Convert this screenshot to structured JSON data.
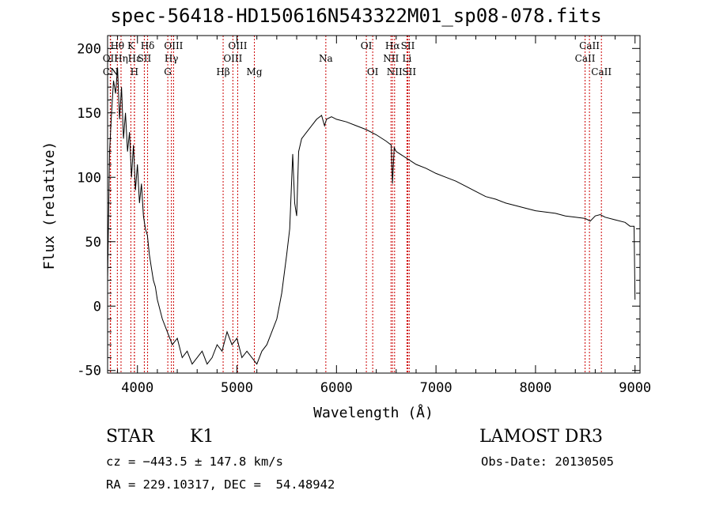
{
  "chart_data": {
    "type": "line",
    "title": "spec-56418-HD150616N543322M01_sp08-078.fits",
    "xlabel": "Wavelength (Å)",
    "ylabel": "Flux (relative)",
    "xlim": [
      3700,
      9050
    ],
    "ylim": [
      -52,
      210
    ],
    "x_ticks": [
      4000,
      5000,
      6000,
      7000,
      8000,
      9000
    ],
    "y_ticks": [
      -50,
      0,
      50,
      100,
      150,
      200
    ],
    "grid": false,
    "series": [
      {
        "x": [
          3700,
          3720,
          3740,
          3760,
          3780,
          3800,
          3820,
          3840,
          3860,
          3880,
          3900,
          3920,
          3940,
          3960,
          3980,
          4000,
          4020,
          4040,
          4060,
          4080,
          4100,
          4120,
          4140,
          4160,
          4180,
          4200,
          4250,
          4300,
          4350,
          4400,
          4450,
          4500,
          4550,
          4600,
          4650,
          4700,
          4750,
          4800,
          4850,
          4900,
          4950,
          5000,
          5050,
          5100,
          5150,
          5200,
          5250,
          5300,
          5350,
          5400,
          5450,
          5500,
          5530,
          5560,
          5580,
          5600,
          5620,
          5650,
          5700,
          5750,
          5800,
          5850,
          5880,
          5900,
          5950,
          6000,
          6100,
          6200,
          6300,
          6400,
          6500,
          6550,
          6563,
          6580,
          6600,
          6700,
          6800,
          6900,
          7000,
          7100,
          7200,
          7300,
          7400,
          7500,
          7600,
          7700,
          7800,
          7900,
          8000,
          8100,
          8200,
          8300,
          8400,
          8500,
          8550,
          8600,
          8650,
          8700,
          8800,
          8900,
          8950,
          8990,
          9000
        ],
        "y": [
          20,
          120,
          150,
          175,
          165,
          185,
          145,
          170,
          130,
          150,
          120,
          135,
          100,
          125,
          90,
          110,
          80,
          95,
          70,
          60,
          55,
          40,
          30,
          20,
          15,
          5,
          -10,
          -20,
          -30,
          -25,
          -40,
          -35,
          -45,
          -40,
          -35,
          -45,
          -40,
          -30,
          -35,
          -20,
          -30,
          -25,
          -40,
          -35,
          -40,
          -45,
          -35,
          -30,
          -20,
          -10,
          10,
          40,
          60,
          118,
          80,
          70,
          120,
          130,
          135,
          140,
          145,
          148,
          140,
          145,
          147,
          145,
          143,
          140,
          137,
          133,
          128,
          125,
          95,
          123,
          120,
          115,
          110,
          107,
          103,
          100,
          97,
          93,
          89,
          85,
          83,
          80,
          78,
          76,
          74,
          73,
          72,
          70,
          69,
          68,
          66,
          70,
          71,
          69,
          67,
          65,
          62,
          62,
          5
        ]
      }
    ],
    "line_markers": [
      {
        "label": "Hθ",
        "x": 3798,
        "row": 1
      },
      {
        "label": "OII",
        "x": 3727,
        "row": 2
      },
      {
        "label": "Hη",
        "x": 3835,
        "row": 2
      },
      {
        "label": "Hε",
        "x": 3970,
        "row": 2
      },
      {
        "label": "K",
        "x": 3934,
        "row": 1
      },
      {
        "label": "SII",
        "x": 4069,
        "row": 2
      },
      {
        "label": "Hδ",
        "x": 4102,
        "row": 1
      },
      {
        "label": "CN",
        "x": 3730,
        "row": 3
      },
      {
        "label": "H",
        "x": 3969,
        "row": 3
      },
      {
        "label": "OIII",
        "x": 4363,
        "row": 1
      },
      {
        "label": "Hγ",
        "x": 4341,
        "row": 2
      },
      {
        "label": "G",
        "x": 4305,
        "row": 3
      },
      {
        "label": "Hβ",
        "x": 4861,
        "row": 3
      },
      {
        "label": "OIII",
        "x": 5007,
        "row": 1
      },
      {
        "label": "OIII",
        "x": 4959,
        "row": 2
      },
      {
        "label": "Mg",
        "x": 5175,
        "row": 3
      },
      {
        "label": "Na",
        "x": 5893,
        "row": 2
      },
      {
        "label": "OI",
        "x": 6300,
        "row": 1
      },
      {
        "label": "OI",
        "x": 6364,
        "row": 3
      },
      {
        "label": "Hα",
        "x": 6563,
        "row": 1
      },
      {
        "label": "SII",
        "x": 6717,
        "row": 1
      },
      {
        "label": "NII",
        "x": 6548,
        "row": 2
      },
      {
        "label": "Li",
        "x": 6708,
        "row": 2
      },
      {
        "label": "NII",
        "x": 6584,
        "row": 3
      },
      {
        "label": "SII",
        "x": 6731,
        "row": 3
      },
      {
        "label": "CaII",
        "x": 8542,
        "row": 1
      },
      {
        "label": "CaII",
        "x": 8498,
        "row": 2
      },
      {
        "label": "CaII",
        "x": 8662,
        "row": 3
      }
    ],
    "colors": {
      "spectrum": "#000000",
      "markers": "#cc0000",
      "axes": "#000000"
    }
  },
  "info": {
    "object_class": "STAR",
    "subclass": "K1",
    "survey": "LAMOST DR3",
    "cz": "cz = −443.5 ± 147.8 km/s",
    "obs_date": "Obs-Date: 20130505",
    "coords": "RA = 229.10317, DEC =  54.48942"
  }
}
